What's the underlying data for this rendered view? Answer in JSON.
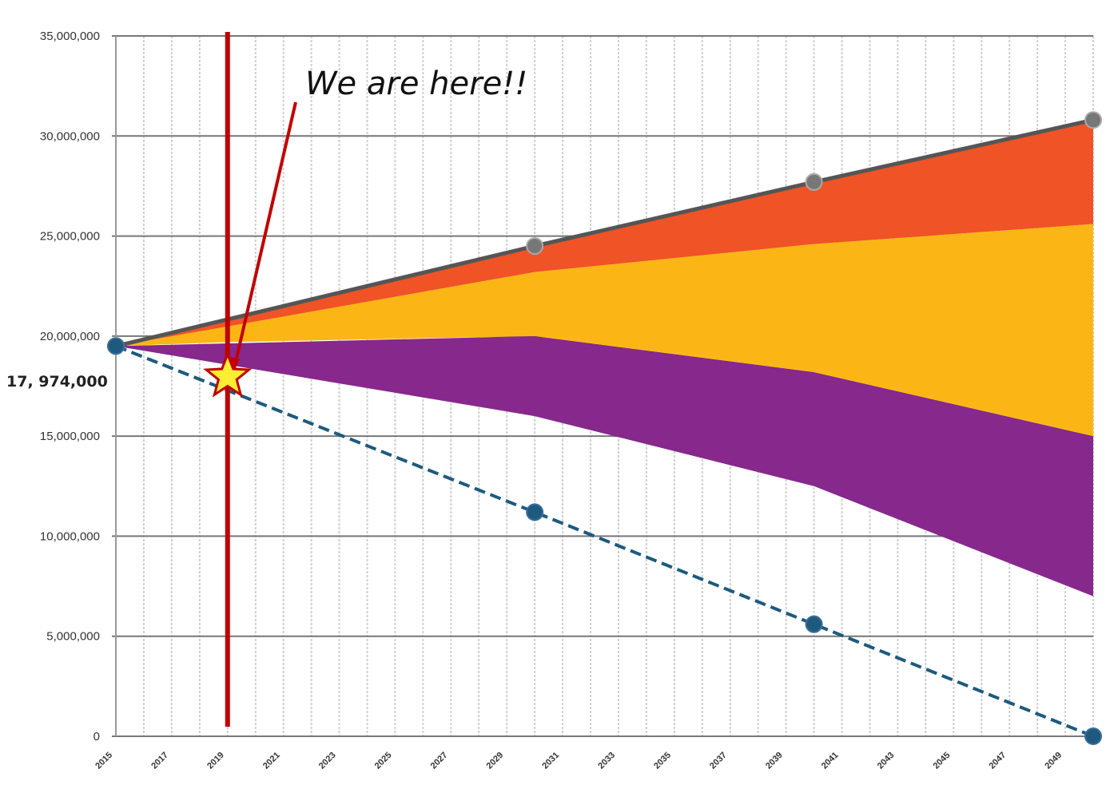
{
  "chart_data": {
    "type": "area",
    "title": "",
    "xlabel": "",
    "ylabel": "",
    "ylim": [
      0,
      35000000
    ],
    "xlim": [
      2015,
      2050
    ],
    "y_ticks": [
      "35,000,000",
      "30,000,000",
      "25,000,000",
      "20,000,000",
      "15,000,000",
      "10,000,000",
      "5,000,000",
      "0"
    ],
    "y_tick_values": [
      35000000,
      30000000,
      25000000,
      20000000,
      15000000,
      10000000,
      5000000,
      0
    ],
    "x_ticks": [
      "2015",
      "2017",
      "2019",
      "2021",
      "2023",
      "2025",
      "2027",
      "2029",
      "2031",
      "2033",
      "2035",
      "2037",
      "2039",
      "2041",
      "2043",
      "2045",
      "2047",
      "2049"
    ],
    "x_tick_values": [
      2015,
      2017,
      2019,
      2021,
      2023,
      2025,
      2027,
      2029,
      2031,
      2033,
      2035,
      2037,
      2039,
      2041,
      2043,
      2045,
      2047,
      2049
    ],
    "grid": true,
    "legend": "none",
    "series": [
      {
        "color": "#86288c",
        "x": [
          2015,
          2030,
          2040,
          2050
        ],
        "lower": [
          19500000,
          16000000,
          12500000,
          7000000
        ],
        "upper": [
          19500000,
          20000000,
          18200000,
          15000000
        ]
      },
      {
        "color": "#fbb616",
        "x": [
          2015,
          2019,
          2030,
          2040,
          2050
        ],
        "lower": [
          19500000,
          19700000,
          20000000,
          18200000,
          15000000
        ],
        "upper": [
          19500000,
          20500000,
          23200000,
          24600000,
          25600000
        ]
      },
      {
        "color": "#ef5326",
        "x": [
          2015,
          2030,
          2040,
          2050
        ],
        "lower": [
          19500000,
          23200000,
          24600000,
          25600000
        ],
        "upper": [
          19500000,
          24500000,
          27700000,
          30800000
        ]
      }
    ],
    "lines": [
      {
        "color": "#555555",
        "style": "solid",
        "x": [
          2015,
          2030,
          2040,
          2050
        ],
        "y": [
          19500000,
          24500000,
          27700000,
          30800000
        ]
      },
      {
        "color": "#1d5a7e",
        "style": "dashed",
        "x": [
          2015,
          2030,
          2040,
          2050
        ],
        "y": [
          19500000,
          11200000,
          5600000,
          0
        ]
      }
    ],
    "vertical_line": {
      "x": 2019,
      "color": "#c00000"
    },
    "marker": {
      "x": 2019,
      "y": 17974000,
      "label": "17, 974,000",
      "color": "#ffee33"
    },
    "annotation": {
      "text": "We are here!!"
    }
  }
}
